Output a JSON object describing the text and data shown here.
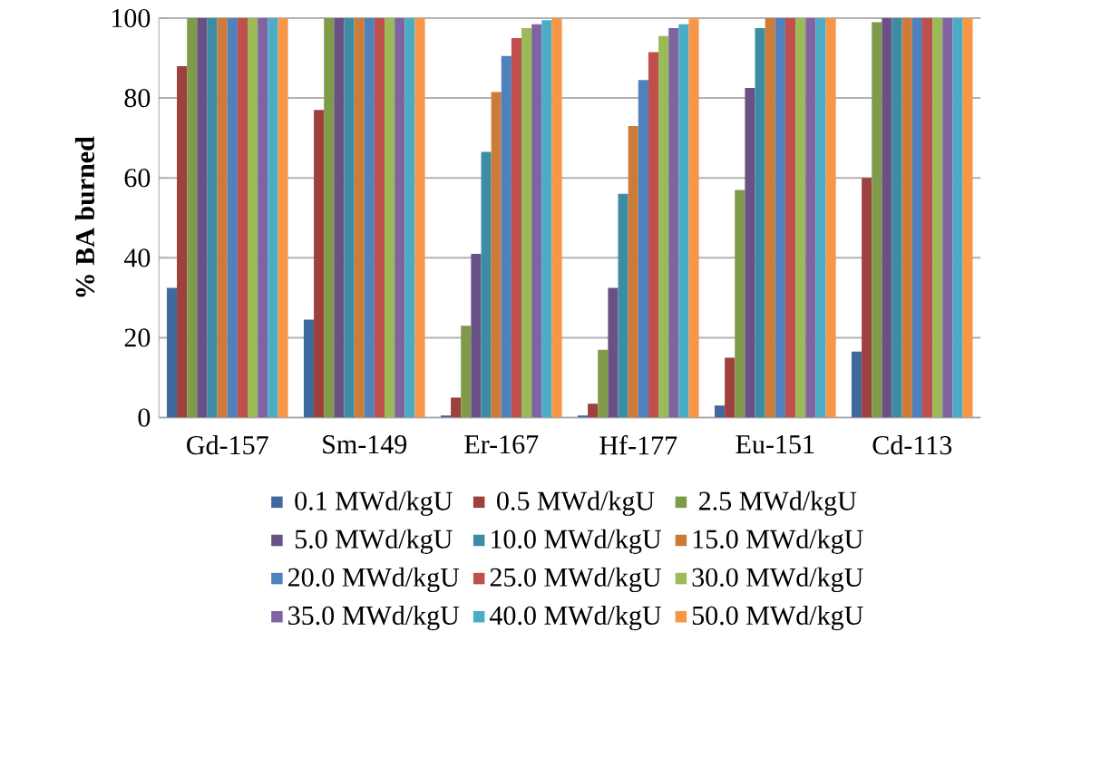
{
  "chart_data": {
    "type": "bar",
    "ylabel": "% BA burned",
    "categories": [
      "Gd-157",
      "Sm-149",
      "Er-167",
      "Hf-177",
      "Eu-151",
      "Cd-113"
    ],
    "ylim": [
      0,
      100
    ],
    "yticks": [
      0,
      20,
      40,
      60,
      80,
      100
    ],
    "grid": "y",
    "legend": "bottom",
    "series": [
      {
        "name": "0.1 MWd/kgU",
        "color": "#40699c",
        "values": [
          32.5,
          24.5,
          0.5,
          0.5,
          3,
          16.5
        ]
      },
      {
        "name": "0.5 MWd/kgU",
        "color": "#9e413e",
        "values": [
          88,
          77,
          5,
          3.5,
          15,
          60
        ]
      },
      {
        "name": "2.5 MWd/kgU",
        "color": "#7f9a48",
        "values": [
          100,
          100,
          23,
          17,
          57,
          99
        ]
      },
      {
        "name": "5.0 MWd/kgU",
        "color": "#695185",
        "values": [
          100,
          100,
          41,
          32.5,
          82.5,
          100
        ]
      },
      {
        "name": "10.0 MWd/kgU",
        "color": "#3c8da3",
        "values": [
          100,
          100,
          66.5,
          56,
          97.5,
          100
        ]
      },
      {
        "name": "15.0 MWd/kgU",
        "color": "#cc7b38",
        "values": [
          100,
          100,
          81.5,
          73,
          100,
          100
        ]
      },
      {
        "name": "20.0 MWd/kgU",
        "color": "#4f81bd",
        "values": [
          100,
          100,
          90.5,
          84.5,
          100,
          100
        ]
      },
      {
        "name": "25.0 MWd/kgU",
        "color": "#c0504d",
        "values": [
          100,
          100,
          95,
          91.5,
          100,
          100
        ]
      },
      {
        "name": "30.0 MWd/kgU",
        "color": "#9bbb59",
        "values": [
          100,
          100,
          97.5,
          95.5,
          100,
          100
        ]
      },
      {
        "name": "35.0 MWd/kgU",
        "color": "#8064a2",
        "values": [
          100,
          100,
          98.5,
          97.5,
          100,
          100
        ]
      },
      {
        "name": "40.0 MWd/kgU",
        "color": "#4bacc6",
        "values": [
          100,
          100,
          99.5,
          98.5,
          100,
          100
        ]
      },
      {
        "name": "50.0 MWd/kgU",
        "color": "#f79646",
        "values": [
          100,
          100,
          100,
          100,
          100,
          100
        ]
      }
    ]
  }
}
